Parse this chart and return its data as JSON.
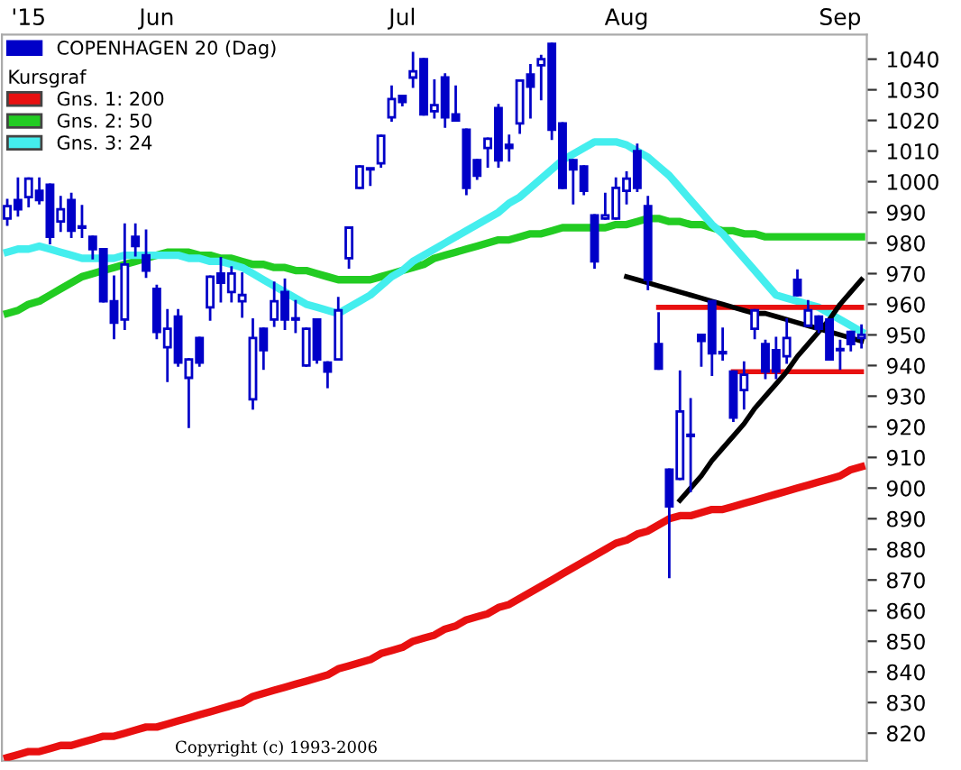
{
  "chart_data": {
    "type": "candlestick",
    "categories": [
      null,
      null,
      "'15",
      null,
      null,
      null,
      null,
      null,
      null,
      null,
      null,
      null,
      null,
      null,
      "Jun",
      null,
      null,
      null,
      null,
      null,
      null,
      null,
      null,
      null,
      null,
      null,
      null,
      null,
      null,
      null,
      null,
      null,
      null,
      null,
      null,
      null,
      null,
      "Jul",
      null,
      null,
      null,
      null,
      null,
      null,
      null,
      null,
      null,
      null,
      null,
      null,
      null,
      null,
      null,
      null,
      null,
      null,
      null,
      null,
      "Aug",
      null,
      null,
      null,
      null,
      null,
      null,
      null,
      null,
      null,
      null,
      null,
      null,
      null,
      null,
      null,
      null,
      null,
      null,
      null,
      "Sep",
      null,
      null
    ],
    "ylim": [
      811,
      1048
    ],
    "yticks": [
      820,
      830,
      840,
      850,
      860,
      870,
      880,
      890,
      900,
      910,
      920,
      930,
      940,
      950,
      960,
      970,
      980,
      990,
      1000,
      1010,
      1020,
      1030,
      1040
    ],
    "grid": false,
    "legend": "top left",
    "legend_title": "Kursgraf",
    "annotations": [
      "Copyright (c) 1993-2006"
    ],
    "series": [
      {
        "name": "COPENHAGEN 20 (Dag)",
        "color": "#0000c8",
        "ohlc": [
          [
            988,
            994,
            986,
            992
          ],
          [
            994,
            1001,
            989,
            991
          ],
          [
            995,
            1001,
            992,
            1001
          ],
          [
            997,
            1001,
            993,
            994
          ],
          [
            999,
            999,
            980,
            982
          ],
          [
            987,
            995,
            984,
            991
          ],
          [
            994,
            996,
            982,
            984
          ],
          [
            985,
            992,
            982,
            985
          ],
          [
            982,
            982,
            975,
            978
          ],
          [
            978,
            978,
            961,
            961
          ],
          [
            961,
            969,
            949,
            954
          ],
          [
            955,
            986,
            952,
            973
          ],
          [
            982,
            986,
            976,
            979
          ],
          [
            976,
            984,
            969,
            971
          ],
          [
            965,
            966,
            949,
            951
          ],
          [
            946,
            958,
            935,
            952
          ],
          [
            956,
            958,
            940,
            941
          ],
          [
            936,
            942,
            920,
            942
          ],
          [
            949,
            949,
            940,
            941
          ],
          [
            959,
            969,
            955,
            969
          ],
          [
            970,
            975,
            961,
            967
          ],
          [
            964,
            972,
            961,
            970
          ],
          [
            961,
            970,
            956,
            963
          ],
          [
            929,
            955,
            926,
            949
          ],
          [
            952,
            952,
            939,
            945
          ],
          [
            955,
            967,
            953,
            961
          ],
          [
            964,
            968,
            952,
            955
          ],
          [
            955,
            961,
            951,
            955
          ],
          [
            940,
            952,
            940,
            952
          ],
          [
            955,
            955,
            941,
            942
          ],
          [
            941,
            941,
            933,
            938
          ],
          [
            942,
            962,
            942,
            958
          ],
          [
            975,
            985,
            972,
            985
          ],
          [
            998,
            1005,
            998,
            1005
          ],
          [
            1004,
            1004,
            999,
            1004
          ],
          [
            1006,
            1015,
            1005,
            1015
          ],
          [
            1021,
            1031,
            1020,
            1027
          ],
          [
            1028,
            1028,
            1025,
            1026
          ],
          [
            1034,
            1042,
            1031,
            1036
          ],
          [
            1040,
            1040,
            1022,
            1022
          ],
          [
            1023,
            1033,
            1021,
            1025
          ],
          [
            1034,
            1035,
            1018,
            1021
          ],
          [
            1022,
            1031,
            1020,
            1020
          ],
          [
            1017,
            1017,
            996,
            998
          ],
          [
            1007,
            1007,
            1001,
            1002
          ],
          [
            1011,
            1014,
            1005,
            1014
          ],
          [
            1024,
            1025,
            1005,
            1007
          ],
          [
            1012,
            1015,
            1007,
            1011
          ],
          [
            1019,
            1033,
            1016,
            1033
          ],
          [
            1035,
            1038,
            1021,
            1031
          ],
          [
            1038,
            1041,
            1027,
            1040
          ],
          [
            1045,
            1045,
            1014,
            1017
          ],
          [
            1019,
            1019,
            998,
            998
          ],
          [
            1007,
            1007,
            993,
            1004
          ],
          [
            1005,
            1005,
            996,
            997
          ],
          [
            989,
            989,
            972,
            974
          ],
          [
            988,
            996,
            988,
            989
          ],
          [
            988,
            1001,
            988,
            998
          ],
          [
            997,
            1003,
            993,
            1001
          ],
          [
            1010,
            1012,
            997,
            998
          ],
          [
            992,
            995,
            965,
            968
          ],
          [
            947,
            957,
            939,
            939
          ],
          [
            906,
            906,
            871,
            894
          ],
          [
            903,
            938,
            903,
            925
          ],
          [
            917,
            929,
            899,
            917
          ],
          [
            950,
            950,
            940,
            948
          ],
          [
            961,
            961,
            937,
            944
          ],
          [
            944,
            952,
            942,
            944
          ],
          [
            938,
            938,
            922,
            923
          ],
          [
            932,
            941,
            926,
            937
          ],
          [
            952,
            958,
            949,
            958
          ],
          [
            947,
            948,
            936,
            938
          ],
          [
            945,
            949,
            936,
            938
          ],
          [
            943,
            955,
            941,
            949
          ],
          [
            968,
            971,
            963,
            963
          ],
          [
            953,
            961,
            953,
            958
          ],
          [
            956,
            956,
            951,
            952
          ],
          [
            955,
            955,
            942,
            942
          ],
          [
            945,
            948,
            939,
            945
          ],
          [
            951,
            951,
            945,
            947
          ],
          [
            949,
            953,
            946,
            950
          ]
        ]
      },
      {
        "type": "line",
        "name": "Gns. 1: 200",
        "color": "#e81010",
        "values": [
          812,
          813,
          814,
          814,
          815,
          816,
          816,
          817,
          818,
          819,
          819,
          820,
          821,
          822,
          822,
          823,
          824,
          825,
          826,
          827,
          828,
          829,
          830,
          832,
          833,
          834,
          835,
          836,
          837,
          838,
          839,
          841,
          842,
          843,
          844,
          846,
          847,
          848,
          850,
          851,
          852,
          854,
          855,
          857,
          858,
          859,
          861,
          862,
          864,
          866,
          868,
          870,
          872,
          874,
          876,
          878,
          880,
          882,
          883,
          885,
          886,
          888,
          890,
          891,
          891,
          892,
          893,
          893,
          894,
          895,
          896,
          897,
          898,
          899,
          900,
          901,
          902,
          903,
          904,
          906,
          907
        ]
      },
      {
        "type": "line",
        "name": "Gns. 2: 50",
        "color": "#22cc22",
        "values": [
          957,
          958,
          960,
          961,
          963,
          965,
          967,
          969,
          970,
          971,
          972,
          973,
          974,
          975,
          976,
          977,
          977,
          977,
          976,
          976,
          975,
          975,
          974,
          973,
          973,
          972,
          972,
          971,
          971,
          970,
          969,
          968,
          968,
          968,
          968,
          969,
          970,
          971,
          972,
          973,
          975,
          976,
          977,
          978,
          979,
          980,
          981,
          981,
          982,
          983,
          983,
          984,
          985,
          985,
          985,
          985,
          985,
          986,
          986,
          987,
          988,
          988,
          987,
          987,
          986,
          986,
          985,
          984,
          984,
          983,
          983,
          982,
          982,
          982,
          982,
          982,
          982,
          982,
          982,
          982,
          982
        ]
      },
      {
        "type": "line",
        "name": "Gns. 3: 24",
        "color": "#44eeee",
        "values": [
          977,
          978,
          978,
          979,
          978,
          977,
          976,
          975,
          975,
          975,
          975,
          976,
          976,
          976,
          976,
          976,
          976,
          975,
          975,
          974,
          974,
          973,
          972,
          970,
          968,
          966,
          964,
          962,
          960,
          959,
          958,
          957,
          959,
          961,
          963,
          966,
          969,
          971,
          974,
          976,
          978,
          980,
          982,
          984,
          986,
          988,
          990,
          993,
          995,
          998,
          1001,
          1004,
          1007,
          1009,
          1011,
          1013,
          1013,
          1013,
          1012,
          1010,
          1008,
          1005,
          1002,
          998,
          994,
          990,
          986,
          983,
          979,
          975,
          971,
          967,
          963,
          962,
          961,
          960,
          959,
          957,
          955,
          953,
          951
        ]
      },
      {
        "type": "line",
        "color": "#e81010",
        "values": [
          null,
          null,
          null,
          null,
          null,
          null,
          null,
          null,
          null,
          null,
          null,
          null,
          null,
          null,
          null,
          null,
          null,
          null,
          null,
          null,
          null,
          null,
          null,
          null,
          null,
          null,
          null,
          null,
          null,
          null,
          null,
          null,
          null,
          null,
          null,
          null,
          null,
          null,
          null,
          null,
          null,
          null,
          null,
          null,
          null,
          null,
          null,
          null,
          null,
          null,
          null,
          null,
          null,
          null,
          null,
          null,
          null,
          null,
          null,
          null,
          null,
          959,
          959,
          959,
          959,
          959,
          959,
          959,
          959,
          959,
          959,
          959,
          959,
          959,
          959,
          959,
          959,
          959,
          959,
          959,
          959
        ]
      },
      {
        "type": "line",
        "color": "#e81010",
        "values": [
          null,
          null,
          null,
          null,
          null,
          null,
          null,
          null,
          null,
          null,
          null,
          null,
          null,
          null,
          null,
          null,
          null,
          null,
          null,
          null,
          null,
          null,
          null,
          null,
          null,
          null,
          null,
          null,
          null,
          null,
          null,
          null,
          null,
          null,
          null,
          null,
          null,
          null,
          null,
          null,
          null,
          null,
          null,
          null,
          null,
          null,
          null,
          null,
          null,
          null,
          null,
          null,
          null,
          null,
          null,
          null,
          null,
          null,
          null,
          null,
          null,
          null,
          null,
          null,
          null,
          null,
          null,
          null,
          938,
          938,
          938,
          938,
          938,
          938,
          938,
          938,
          938,
          938,
          938,
          938,
          938
        ]
      },
      {
        "type": "line",
        "color": "#000000",
        "values": [
          null,
          null,
          null,
          null,
          null,
          null,
          null,
          null,
          null,
          null,
          null,
          null,
          null,
          null,
          null,
          null,
          null,
          null,
          null,
          null,
          null,
          null,
          null,
          null,
          null,
          null,
          null,
          null,
          null,
          null,
          null,
          null,
          null,
          null,
          null,
          null,
          null,
          null,
          null,
          null,
          null,
          null,
          null,
          null,
          null,
          null,
          null,
          null,
          null,
          null,
          null,
          null,
          null,
          null,
          null,
          null,
          null,
          null,
          null,
          null,
          null,
          null,
          null,
          896,
          900,
          904,
          909,
          913,
          917,
          921,
          926,
          930,
          934,
          938,
          943,
          947,
          951,
          955,
          960,
          964,
          968
        ]
      },
      {
        "type": "line",
        "color": "#000000",
        "values": [
          null,
          null,
          null,
          null,
          null,
          null,
          null,
          null,
          null,
          null,
          null,
          null,
          null,
          null,
          null,
          null,
          null,
          null,
          null,
          null,
          null,
          null,
          null,
          null,
          null,
          null,
          null,
          null,
          null,
          null,
          null,
          null,
          null,
          null,
          null,
          null,
          null,
          null,
          null,
          null,
          null,
          null,
          null,
          null,
          null,
          null,
          null,
          null,
          null,
          null,
          null,
          null,
          null,
          null,
          null,
          null,
          null,
          null,
          969,
          968,
          967,
          966,
          965,
          964,
          963,
          962,
          961,
          960,
          959,
          958,
          957,
          957,
          956,
          955,
          954,
          953,
          952,
          951,
          950,
          949,
          948
        ]
      }
    ]
  }
}
